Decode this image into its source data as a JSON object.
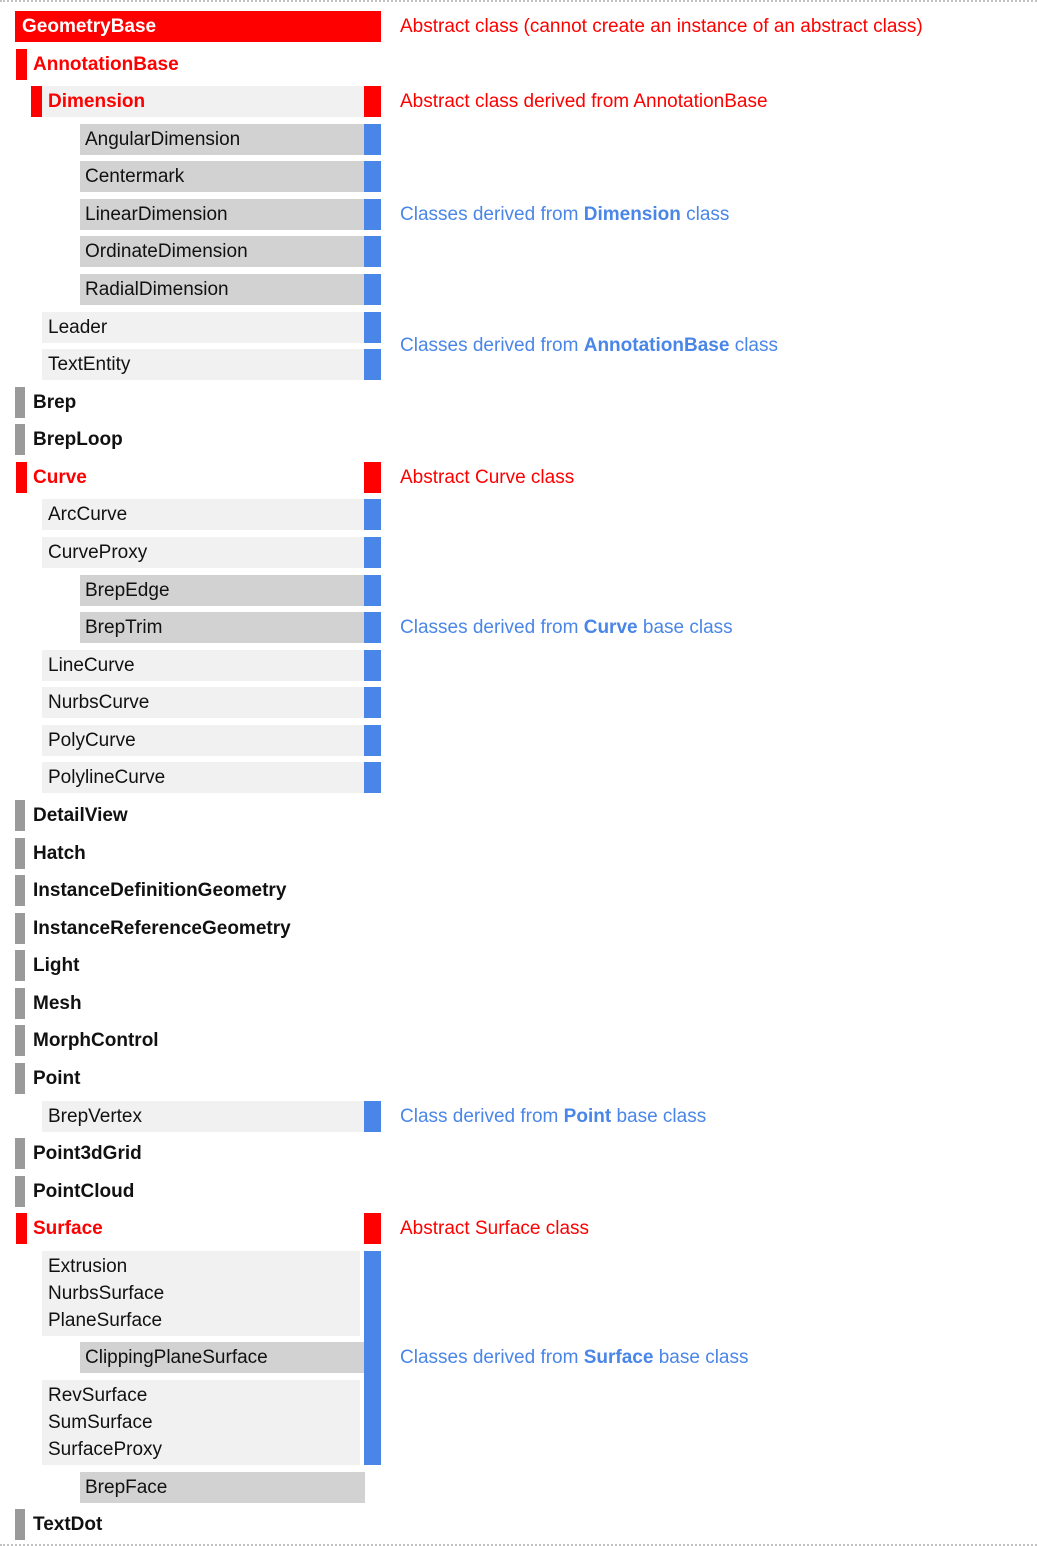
{
  "page": {
    "description": "Class hierarchy diagram of GeometryBase derived classes"
  },
  "colors": {
    "red": "#fe0000",
    "blue": "#4a86e8",
    "light_gray": "#f1f1f1",
    "dark_gray": "#d2d2d2",
    "marker_gray": "#9a9a9a",
    "text_black": "#111111",
    "white": "#ffffff"
  },
  "tree": [
    {
      "label": "GeometryBase",
      "type": "root",
      "square": "red",
      "annotation": {
        "color": "red",
        "parts": [
          {
            "t": "Abstract class (cannot create an instance of an abstract class)"
          }
        ]
      }
    },
    {
      "label": "AnnotationBase",
      "type": "abstract-l1"
    },
    {
      "label": "Dimension",
      "type": "abstract-l2",
      "square": "red",
      "annotation": {
        "color": "red",
        "parts": [
          {
            "t": "Abstract class derived from AnnotationBase"
          }
        ]
      }
    },
    {
      "label": "AngularDimension",
      "type": "l3",
      "square": "blue"
    },
    {
      "label": "Centermark",
      "type": "l3",
      "square": "blue"
    },
    {
      "label": "LinearDimension",
      "type": "l3",
      "square": "blue",
      "annotation": {
        "color": "blue",
        "parts": [
          {
            "t": "Classes derived from "
          },
          {
            "t": "Dimension",
            "b": true
          },
          {
            "t": " class"
          }
        ]
      }
    },
    {
      "label": "OrdinateDimension",
      "type": "l3",
      "square": "blue"
    },
    {
      "label": "RadialDimension",
      "type": "l3",
      "square": "blue"
    },
    {
      "label": "Leader",
      "type": "l2",
      "square": "blue",
      "annotation": {
        "color": "blue",
        "anchor": "gap",
        "parts": [
          {
            "t": "Classes derived from "
          },
          {
            "t": "AnnotationBase",
            "b": true
          },
          {
            "t": " class"
          }
        ]
      }
    },
    {
      "label": "TextEntity",
      "type": "l2",
      "square": "blue"
    },
    {
      "label": "Brep",
      "type": "bold-l1"
    },
    {
      "label": "BrepLoop",
      "type": "bold-l1"
    },
    {
      "label": "Curve",
      "type": "abstract-l1",
      "square": "red",
      "annotation": {
        "color": "red",
        "parts": [
          {
            "t": "Abstract Curve class"
          }
        ]
      }
    },
    {
      "label": "ArcCurve",
      "type": "l2",
      "square": "blue"
    },
    {
      "label": "CurveProxy",
      "type": "l2",
      "square": "blue"
    },
    {
      "label": "BrepEdge",
      "type": "l3",
      "square": "blue"
    },
    {
      "label": "BrepTrim",
      "type": "l3",
      "square": "blue",
      "annotation": {
        "color": "blue",
        "parts": [
          {
            "t": "Classes derived from "
          },
          {
            "t": "Curve",
            "b": true
          },
          {
            "t": " base class"
          }
        ]
      }
    },
    {
      "label": "LineCurve",
      "type": "l2",
      "square": "blue"
    },
    {
      "label": "NurbsCurve",
      "type": "l2",
      "square": "blue"
    },
    {
      "label": "PolyCurve",
      "type": "l2",
      "square": "blue"
    },
    {
      "label": "PolylineCurve",
      "type": "l2",
      "square": "blue"
    },
    {
      "label": "DetailView",
      "type": "bold-l1"
    },
    {
      "label": "Hatch",
      "type": "bold-l1"
    },
    {
      "label": "InstanceDefinitionGeometry",
      "type": "bold-l1"
    },
    {
      "label": "InstanceReferenceGeometry",
      "type": "bold-l1"
    },
    {
      "label": "Light",
      "type": "bold-l1"
    },
    {
      "label": "Mesh",
      "type": "bold-l1"
    },
    {
      "label": "MorphControl",
      "type": "bold-l1"
    },
    {
      "label": "Point",
      "type": "bold-l1"
    },
    {
      "label": "BrepVertex",
      "type": "l2",
      "square": "blue",
      "annotation": {
        "color": "blue",
        "parts": [
          {
            "t": "Class derived from "
          },
          {
            "t": "Point",
            "b": true
          },
          {
            "t": " base class"
          }
        ]
      }
    },
    {
      "label": "Point3dGrid",
      "type": "bold-l1"
    },
    {
      "label": "PointCloud",
      "type": "bold-l1"
    },
    {
      "label": "Surface",
      "type": "abstract-l1",
      "square": "red",
      "annotation": {
        "color": "red",
        "parts": [
          {
            "t": "Abstract Surface class"
          }
        ]
      }
    },
    {
      "labels": [
        "Extrusion",
        "NurbsSurface",
        "PlaneSurface"
      ],
      "type": "l2-multi",
      "group": "surface-bar-start"
    },
    {
      "label": "ClippingPlaneSurface",
      "type": "l3",
      "annotation": {
        "color": "blue",
        "parts": [
          {
            "t": "Classes derived from "
          },
          {
            "t": "Surface",
            "b": true
          },
          {
            "t": " base class"
          }
        ]
      }
    },
    {
      "labels": [
        "RevSurface",
        "SumSurface",
        "SurfaceProxy"
      ],
      "type": "l2-multi",
      "group": "surface-bar-end"
    },
    {
      "label": "BrepFace",
      "type": "l3"
    },
    {
      "label": "TextDot",
      "type": "bold-l1"
    }
  ]
}
